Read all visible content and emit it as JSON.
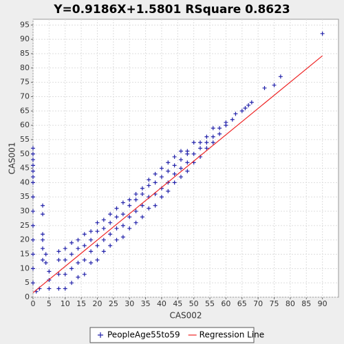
{
  "chart_data": {
    "type": "scatter",
    "title": "Y=0.9186X+1.5801    RSquare 0.8623",
    "x_label": "CAS002",
    "y_label": "CAS001",
    "xlim": [
      0,
      95
    ],
    "ylim": [
      0,
      97
    ],
    "xticks": [
      0,
      5,
      10,
      15,
      20,
      25,
      30,
      35,
      40,
      45,
      50,
      55,
      60,
      65,
      70,
      75,
      80,
      85,
      90
    ],
    "yticks": [
      0,
      5,
      10,
      15,
      20,
      25,
      30,
      35,
      40,
      45,
      50,
      55,
      60,
      65,
      70,
      75,
      80,
      85,
      90,
      95
    ],
    "grid": true,
    "legend": "bottom",
    "series": [
      {
        "name": "PeopleAge55to59",
        "color": "#2222aa",
        "marker": "+",
        "x": [
          0,
          0,
          0,
          0,
          0,
          0,
          0,
          0,
          0,
          0,
          0,
          0,
          0,
          0,
          1,
          2,
          3,
          3,
          3,
          3,
          3,
          3,
          4,
          4,
          5,
          5,
          5,
          8,
          8,
          8,
          8,
          10,
          10,
          10,
          10,
          12,
          12,
          12,
          12,
          14,
          14,
          14,
          14,
          16,
          16,
          16,
          16,
          18,
          18,
          18,
          18,
          20,
          20,
          20,
          20,
          22,
          22,
          22,
          22,
          24,
          24,
          24,
          24,
          26,
          26,
          26,
          26,
          28,
          28,
          28,
          28,
          30,
          30,
          30,
          30,
          32,
          32,
          32,
          32,
          34,
          34,
          34,
          34,
          36,
          36,
          36,
          36,
          38,
          38,
          38,
          38,
          40,
          40,
          40,
          40,
          42,
          42,
          42,
          42,
          44,
          44,
          44,
          44,
          46,
          46,
          46,
          46,
          48,
          48,
          48,
          48,
          50,
          50,
          50,
          52,
          52,
          52,
          54,
          54,
          54,
          56,
          56,
          56,
          58,
          58,
          60,
          60,
          62,
          63,
          65,
          66,
          67,
          68,
          72,
          75,
          77,
          90
        ],
        "values": [
          52,
          50,
          48,
          46,
          44,
          42,
          40,
          35,
          30,
          25,
          20,
          15,
          10,
          5,
          2,
          3,
          32,
          29,
          22,
          20,
          17,
          13,
          15,
          12,
          3,
          6,
          9,
          3,
          8,
          13,
          16,
          3,
          8,
          13,
          17,
          5,
          10,
          15,
          19,
          7,
          12,
          17,
          20,
          8,
          13,
          18,
          22,
          12,
          16,
          20,
          23,
          13,
          18,
          23,
          26,
          16,
          20,
          24,
          27,
          18,
          22,
          26,
          29,
          20,
          24,
          28,
          31,
          21,
          25,
          29,
          33,
          24,
          28,
          32,
          34,
          26,
          30,
          34,
          36,
          28,
          32,
          36,
          38,
          31,
          35,
          39,
          41,
          32,
          36,
          40,
          43,
          35,
          38,
          42,
          45,
          37,
          40,
          44,
          47,
          40,
          43,
          46,
          49,
          42,
          45,
          48,
          51,
          44,
          47,
          50,
          51,
          47,
          50,
          54,
          49,
          52,
          54,
          52,
          54,
          56,
          54,
          56,
          59,
          57,
          59,
          60,
          61,
          62,
          64,
          65,
          66,
          67,
          68,
          73,
          74,
          77,
          92
        ]
      },
      {
        "name": "Regression Line",
        "color": "#ee2222",
        "marker": "line",
        "x": [
          0,
          90
        ],
        "values": [
          1.5801,
          84.2541
        ]
      }
    ]
  }
}
